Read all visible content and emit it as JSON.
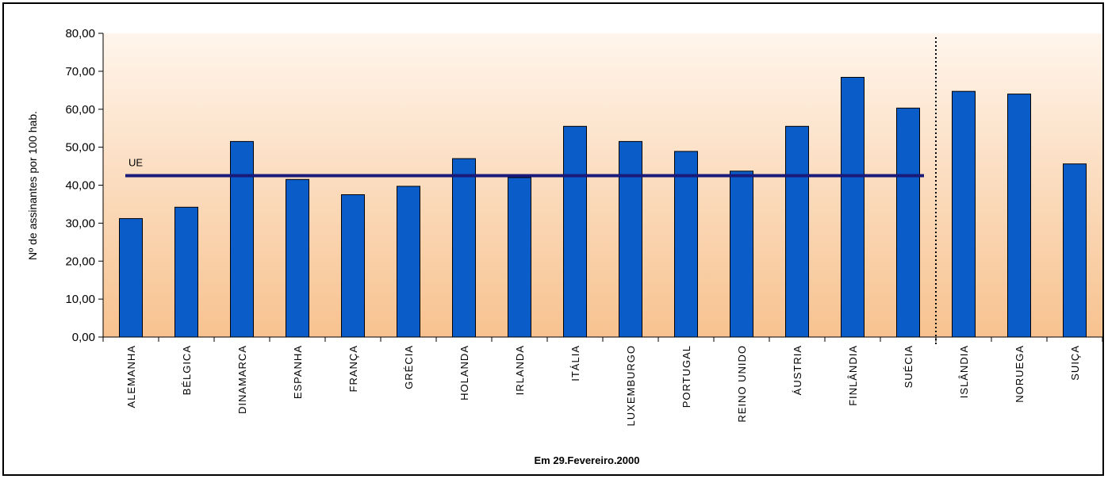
{
  "chart_data": {
    "type": "bar",
    "ylabel": "Nº de assinantes por 100 hab.",
    "footer": "Em 29.Fevereiro.2000",
    "ylim": [
      0,
      80
    ],
    "yticks": [
      "0,00",
      "10,00",
      "20,00",
      "30,00",
      "40,00",
      "50,00",
      "60,00",
      "70,00",
      "80,00"
    ],
    "categories": [
      "ALEMANHA",
      "BÉLGICA",
      "DINAMARCA",
      "ESPANHA",
      "FRANÇA",
      "GRÉCIA",
      "HOLANDA",
      "IRLANDA",
      "ITÁLIA",
      "LUXEMBURGO",
      "PORTUGAL",
      "REINO UNIDO",
      "ÁUSTRIA",
      "FINLÂNDIA",
      "SUÉCIA",
      "ISLÂNDIA",
      "NORUEGA",
      "SUIÇA"
    ],
    "values": [
      31.2,
      34.2,
      51.5,
      41.5,
      37.5,
      39.7,
      47.0,
      42.0,
      55.5,
      51.5,
      48.9,
      43.7,
      55.5,
      68.4,
      60.3,
      64.7,
      64.0,
      45.6
    ],
    "reference_line": {
      "label": "UE",
      "value": 42.5,
      "spans_categories": 15
    },
    "separator_after_index": 14,
    "bar_color": "#0a5cc8",
    "line_color": "#1a1a7a",
    "grid": false,
    "legend": "none"
  }
}
